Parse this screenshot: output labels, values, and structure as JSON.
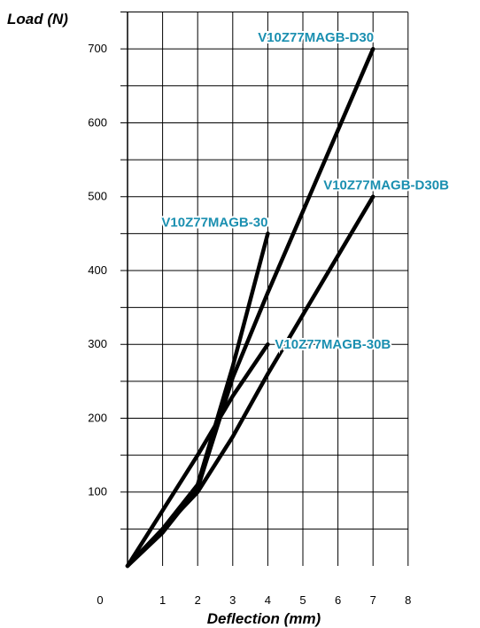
{
  "chart_data": {
    "type": "line",
    "xlabel": "Deflection (mm)",
    "ylabel": "Load (N)",
    "xlim": [
      0,
      8
    ],
    "ylim": [
      0,
      750
    ],
    "origin_label": "0",
    "x_ticks": [
      1,
      2,
      3,
      4,
      5,
      6,
      7,
      8
    ],
    "y_ticks": [
      100,
      200,
      300,
      400,
      500,
      600,
      700
    ],
    "grid": true,
    "label_color": "#1a8fb0",
    "line_color": "#000000",
    "series": [
      {
        "name": "V10Z77MAGB-30",
        "x": [
          0,
          1,
          2,
          3,
          4
        ],
        "y": [
          0,
          50,
          110,
          270,
          450
        ]
      },
      {
        "name": "V10Z77MAGB-D30",
        "x": [
          0,
          1,
          2,
          3,
          4,
          5,
          6,
          7
        ],
        "y": [
          0,
          45,
          105,
          255,
          370,
          480,
          590,
          700
        ]
      },
      {
        "name": "V10Z77MAGB-D30B",
        "x": [
          0,
          1,
          2,
          3,
          4,
          5,
          6,
          7
        ],
        "y": [
          0,
          50,
          100,
          175,
          260,
          340,
          420,
          500
        ]
      },
      {
        "name": "V10Z77MAGB-30B",
        "x": [
          0,
          1,
          2,
          3,
          4
        ],
        "y": [
          0,
          75,
          150,
          230,
          300
        ]
      }
    ]
  }
}
